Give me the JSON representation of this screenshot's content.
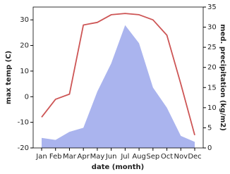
{
  "chart_data": {
    "type": "line-area",
    "x_label": "date (month)",
    "y_label": "max temp (C)",
    "y2_label": "med. precipitation (kg/m2)",
    "categories": [
      "Jan",
      "Feb",
      "Mar",
      "Apr",
      "May",
      "Jun",
      "Jul",
      "Aug",
      "Sep",
      "Oct",
      "Nov",
      "Dec"
    ],
    "series": [
      {
        "name": "max temp",
        "color": "#cd5555",
        "values": [
          -8,
          -1,
          1,
          28,
          29,
          32,
          32.5,
          32,
          30,
          24,
          5,
          -15
        ]
      },
      {
        "name": "med. precipitation",
        "color": "#aab4ee",
        "axis": "y2",
        "values": [
          2.5,
          2,
          4,
          5,
          14,
          21,
          30.5,
          26,
          15,
          10,
          3,
          1.5
        ]
      }
    ],
    "ylim": [
      -20,
      35
    ],
    "yticks": [
      -20,
      -10,
      0,
      10,
      20,
      30
    ],
    "y2lim": [
      0,
      35
    ],
    "y2ticks": [
      0,
      5,
      10,
      15,
      20,
      25,
      30,
      35
    ]
  }
}
